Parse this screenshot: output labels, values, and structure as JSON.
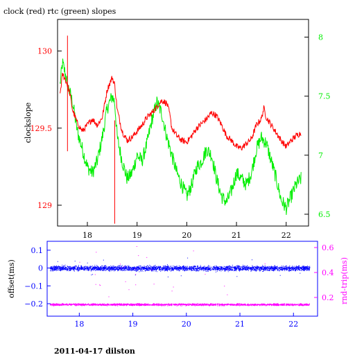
{
  "footer": "2011-04-17 dilston",
  "colors": {
    "red": "#ff0000",
    "green": "#00ee00",
    "blue": "#0000ff",
    "magenta": "#ff00ff",
    "axis": "#000000"
  },
  "chart_data": [
    {
      "type": "line",
      "title": "clock (red) rtc (green) slopes",
      "xlabel": "",
      "ylabel": "clockslope",
      "y2label": "",
      "xlim": [
        17.4,
        22.45
      ],
      "ylim": [
        128.865,
        130.205
      ],
      "y2lim": [
        6.4,
        8.15
      ],
      "xticks": [
        18,
        19,
        20,
        21,
        22
      ],
      "yticks": [
        129,
        129.5,
        130
      ],
      "ytick_labels": [
        "129",
        "129.5",
        "130"
      ],
      "y2ticks": [
        6.5,
        7,
        7.5,
        8
      ],
      "y2tick_labels": [
        "6.5",
        "7",
        "7.5",
        "8"
      ],
      "grid": false,
      "series": [
        {
          "name": "clock",
          "axis": "left",
          "color": "red",
          "x": [
            17.45,
            17.5,
            17.55,
            17.6,
            17.65,
            17.7,
            17.8,
            17.9,
            18.0,
            18.1,
            18.2,
            18.3,
            18.4,
            18.5,
            18.55,
            18.6,
            18.7,
            18.8,
            18.9,
            19.0,
            19.1,
            19.2,
            19.3,
            19.4,
            19.5,
            19.6,
            19.65,
            19.7,
            19.8,
            19.9,
            20.0,
            20.1,
            20.2,
            20.3,
            20.4,
            20.5,
            20.6,
            20.7,
            20.8,
            20.9,
            21.0,
            21.1,
            21.2,
            21.3,
            21.4,
            21.5,
            21.55,
            21.6,
            21.7,
            21.8,
            21.9,
            22.0,
            22.1,
            22.2,
            22.3
          ],
          "y": [
            129.72,
            129.85,
            129.82,
            129.78,
            129.72,
            129.62,
            129.53,
            129.48,
            129.52,
            129.56,
            129.52,
            129.57,
            129.75,
            129.83,
            129.78,
            129.62,
            129.48,
            129.42,
            129.44,
            129.48,
            129.52,
            129.57,
            129.6,
            129.64,
            129.68,
            129.66,
            129.6,
            129.5,
            129.45,
            129.42,
            129.41,
            129.45,
            129.5,
            129.53,
            129.56,
            129.6,
            129.58,
            129.52,
            129.45,
            129.42,
            129.38,
            129.37,
            129.4,
            129.43,
            129.52,
            129.56,
            129.63,
            129.57,
            129.52,
            129.47,
            129.42,
            129.38,
            129.42,
            129.45,
            129.47
          ]
        },
        {
          "name": "rtc",
          "axis": "right",
          "color": "green",
          "x": [
            17.45,
            17.5,
            17.55,
            17.6,
            17.7,
            17.8,
            17.9,
            18.0,
            18.1,
            18.2,
            18.3,
            18.4,
            18.5,
            18.55,
            18.6,
            18.7,
            18.8,
            18.9,
            19.0,
            19.1,
            19.2,
            19.3,
            19.4,
            19.5,
            19.6,
            19.7,
            19.8,
            19.9,
            20.0,
            20.1,
            20.2,
            20.3,
            20.4,
            20.5,
            20.6,
            20.7,
            20.8,
            20.9,
            21.0,
            21.1,
            21.2,
            21.3,
            21.4,
            21.5,
            21.6,
            21.7,
            21.8,
            21.9,
            22.0,
            22.1,
            22.2,
            22.3
          ],
          "y": [
            7.6,
            7.78,
            7.7,
            7.6,
            7.45,
            7.2,
            7.05,
            6.9,
            6.85,
            6.95,
            7.15,
            7.4,
            7.5,
            7.45,
            7.15,
            6.95,
            6.8,
            6.85,
            7.0,
            6.95,
            7.1,
            7.3,
            7.45,
            7.35,
            7.15,
            7.0,
            6.85,
            6.75,
            6.65,
            6.75,
            6.9,
            6.95,
            7.05,
            7.0,
            6.8,
            6.65,
            6.6,
            6.7,
            6.85,
            6.8,
            6.75,
            6.85,
            7.05,
            7.15,
            7.1,
            6.95,
            6.8,
            6.62,
            6.55,
            6.65,
            6.75,
            6.8
          ]
        }
      ]
    },
    {
      "type": "scatter",
      "title": "",
      "xlabel": "",
      "ylabel": "offset(ms)",
      "y2label": "rnd-trip(ms)",
      "xlim": [
        17.4,
        22.45
      ],
      "ylim": [
        -0.27,
        0.15
      ],
      "y2lim": [
        0.05,
        0.65
      ],
      "xticks": [
        18,
        19,
        20,
        21,
        22
      ],
      "yticks": [
        -0.2,
        -0.1,
        0,
        0.1
      ],
      "ytick_labels": [
        "−0.2",
        "−0.1",
        "0",
        "0.1"
      ],
      "y2ticks": [
        0.2,
        0.4,
        0.6
      ],
      "y2tick_labels": [
        "0.2",
        "0.4",
        "0.6"
      ],
      "grid": false,
      "series": [
        {
          "name": "offset",
          "axis": "left",
          "color": "blue",
          "x_range": [
            17.45,
            22.3
          ],
          "center": 0.0,
          "spread": 0.02
        },
        {
          "name": "rnd-trip",
          "axis": "right",
          "color": "magenta",
          "x_range": [
            17.45,
            22.3
          ],
          "center": 0.145,
          "spread": 0.012
        }
      ]
    }
  ]
}
